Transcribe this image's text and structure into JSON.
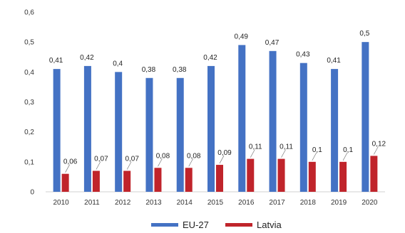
{
  "chart_data": {
    "type": "bar",
    "categories": [
      "2010",
      "2011",
      "2012",
      "2013",
      "2014",
      "2015",
      "2016",
      "2017",
      "2018",
      "2019",
      "2020"
    ],
    "series": [
      {
        "name": "EU-27",
        "color": "#4472C4",
        "values": [
          0.41,
          0.42,
          0.4,
          0.38,
          0.38,
          0.42,
          0.49,
          0.47,
          0.43,
          0.41,
          0.5
        ],
        "labels": [
          "0,41",
          "0,42",
          "0,4",
          "0,38",
          "0,38",
          "0,42",
          "0,49",
          "0,47",
          "0,43",
          "0,41",
          "0,5"
        ]
      },
      {
        "name": "Latvia",
        "color": "#C0242B",
        "values": [
          0.06,
          0.07,
          0.07,
          0.08,
          0.08,
          0.09,
          0.11,
          0.11,
          0.1,
          0.1,
          0.12
        ],
        "labels": [
          "0,06",
          "0,07",
          "0,07",
          "0,08",
          "0,08",
          "0,09",
          "0,11",
          "0,11",
          "0,1",
          "0,1",
          "0,12"
        ]
      }
    ],
    "ylim": [
      0,
      0.6
    ],
    "yticks": [
      0,
      0.1,
      0.2,
      0.3,
      0.4,
      0.5,
      0.6
    ],
    "ytick_labels": [
      "0",
      "0,1",
      "0,2",
      "0,3",
      "0,4",
      "0,5",
      "0,6"
    ],
    "grid": false,
    "legend_position": "bottom",
    "title": "",
    "xlabel": "",
    "ylabel": ""
  }
}
